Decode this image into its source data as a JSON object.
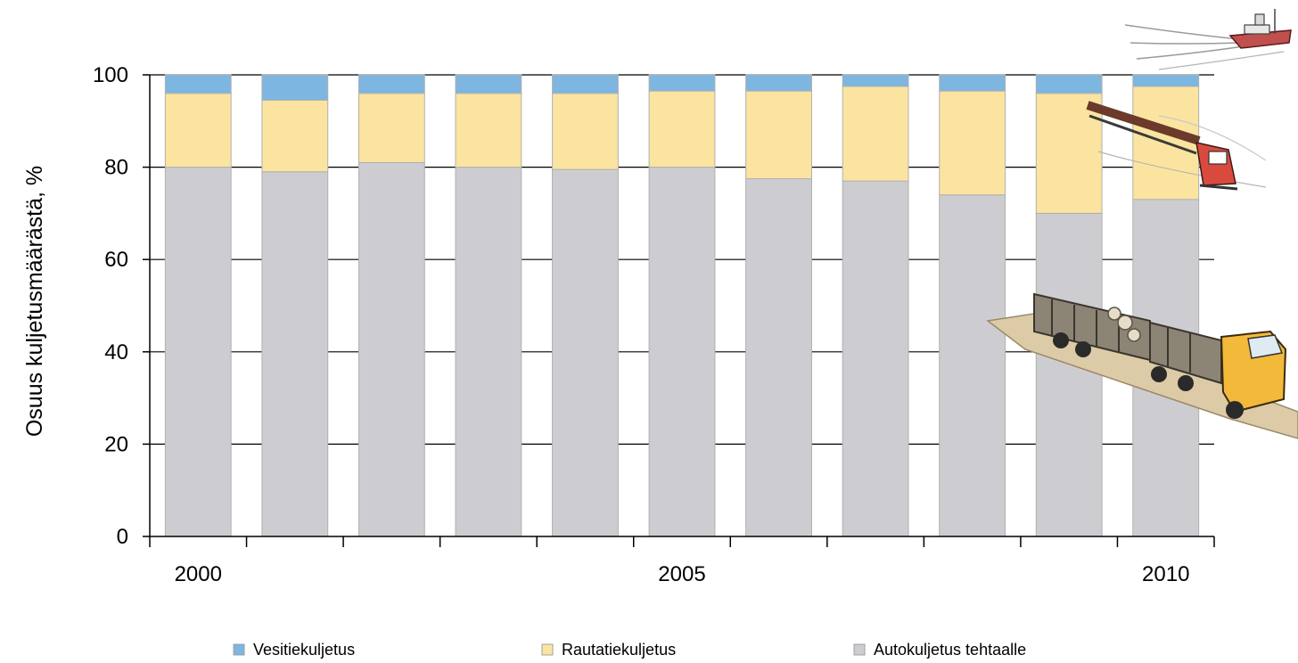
{
  "chart_data": {
    "type": "bar",
    "stacked": true,
    "title": "",
    "xlabel": "",
    "ylabel": "Osuus kuljetusmäärästä, %",
    "ylim": [
      0,
      100
    ],
    "yticks": [
      0,
      20,
      40,
      60,
      80,
      100
    ],
    "grid": true,
    "legend": "bottom",
    "categories": [
      2000,
      2001,
      2002,
      2003,
      2004,
      2005,
      2006,
      2007,
      2008,
      2009,
      2010
    ],
    "x_tick_labels": [
      {
        "category": 2000,
        "label": "2000"
      },
      {
        "category": 2005,
        "label": "2005"
      },
      {
        "category": 2010,
        "label": "2010"
      }
    ],
    "series": [
      {
        "name": "Autokuljetus tehtaalle",
        "color": "#cdcdd1",
        "values": [
          80,
          79,
          81,
          80,
          79.5,
          80,
          77.5,
          77,
          74,
          70,
          73
        ]
      },
      {
        "name": "Rautatiekuljetus",
        "color": "#fbe4a0",
        "values": [
          16,
          15.5,
          15,
          16,
          16.5,
          16.5,
          19,
          20.5,
          22.5,
          26,
          24.5
        ]
      },
      {
        "name": "Vesitiekuljetus",
        "color": "#7db6e0",
        "values": [
          4,
          5.5,
          4,
          4,
          4,
          3.5,
          3.5,
          2.5,
          3.5,
          4,
          2.5
        ]
      }
    ],
    "legend_order": [
      "Vesitiekuljetus",
      "Rautatiekuljetus",
      "Autokuljetus tehtaalle"
    ],
    "illustrations": [
      "ship-icon",
      "train-icon",
      "log-truck-icon"
    ]
  }
}
